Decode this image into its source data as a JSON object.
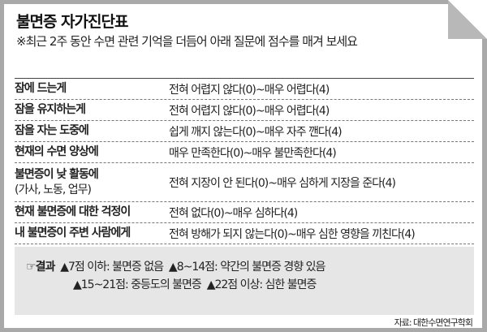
{
  "title": "불면증 자가진단표",
  "subtitle": "※최근 2주 동안 수면 관련 기억을 더듬어 아래 질문에 점수를 매겨 보세요",
  "rows": [
    {
      "question": "잠에 드는게",
      "scale": "전혀 어렵지 않다(0)~매우 어렵다(4)"
    },
    {
      "question": "잠을 유지하는게",
      "scale": "전혀 어렵지 않다(0)~매우 어렵다(4)"
    },
    {
      "question": "잠을 자는 도중에",
      "scale": "쉽게 깨지 않는다(0)~매우 자주 깬다(4)"
    },
    {
      "question": "현재의 수면 양상에",
      "scale": "매우 만족한다(0)~매우 불만족한다(4)"
    },
    {
      "question": "불면증이 낮 활동에",
      "note": "(가사, 노동, 업무)",
      "scale": "전혀 지장이 안 된다(0)~매우 심하게 지장을 준다(4)"
    },
    {
      "question": "현재 불면증에 대한 걱정이",
      "scale": "전혀 없다(0)~매우 심하다(4)"
    },
    {
      "question": "내 불면증이 주변 사람에게",
      "scale": "전혀 방해가 되지 않는다(0)~매우 심한 영향을 끼친다(4)"
    }
  ],
  "result": {
    "icon": "☞",
    "label": "결과",
    "items": [
      "▲7점 이하: 불면증 없음",
      "▲8~14점: 약간의 불면증 경향 있음",
      "▲15~21점: 중등도의 불면증",
      "▲22점 이상: 심한 불면증"
    ]
  },
  "source": "자료: 대한수면연구학회"
}
